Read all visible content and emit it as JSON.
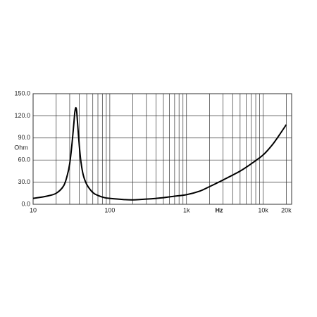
{
  "chart_data": {
    "type": "line",
    "x_label": "Hz",
    "y_label": "Ohm",
    "log_x": true,
    "grid": true,
    "color": "#000000",
    "x": [
      10,
      15,
      20,
      25,
      28,
      30,
      32,
      34,
      35,
      36,
      37,
      38,
      40,
      42,
      45,
      50,
      60,
      70,
      85,
      100,
      150,
      200,
      300,
      500,
      700,
      1000,
      1500,
      2000,
      3000,
      5000,
      7000,
      10000,
      13000,
      16000,
      20000
    ],
    "values": [
      8,
      11,
      15,
      25,
      40,
      55,
      80,
      110,
      125,
      131,
      126,
      110,
      80,
      58,
      40,
      27,
      16,
      12,
      9,
      8,
      6.5,
      6,
      7,
      9,
      11,
      13,
      18,
      24,
      33,
      45,
      55,
      67,
      80,
      93,
      108
    ],
    "xlim": [
      10,
      23500
    ],
    "ylim": [
      0,
      150
    ],
    "xticks": [
      10,
      100,
      {
        "value": 1000,
        "label": "1k"
      },
      {
        "value": 10000,
        "label": "10k"
      },
      {
        "value": 20000,
        "label": "20k"
      }
    ],
    "xgrid_minor": [
      20,
      30,
      40,
      50,
      60,
      70,
      80,
      90,
      200,
      300,
      400,
      500,
      600,
      700,
      800,
      900,
      2000,
      3000,
      4000,
      5000,
      6000,
      7000,
      8000,
      9000
    ],
    "yticks": [
      {
        "value": 0,
        "label": "0.0"
      },
      {
        "value": 30,
        "label": "30.0"
      },
      {
        "value": 60,
        "label": "60.0"
      },
      {
        "value": 90,
        "label": "90.0"
      },
      {
        "value": 120,
        "label": "120.0"
      },
      {
        "value": 150,
        "label": "150.0"
      }
    ]
  }
}
